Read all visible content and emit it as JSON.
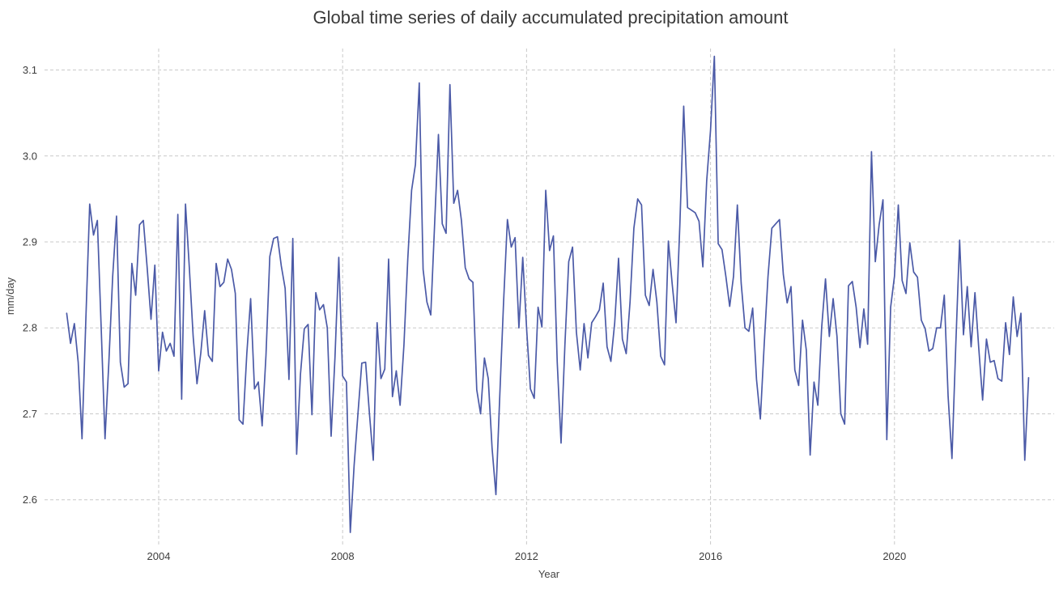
{
  "chart_data": {
    "type": "line",
    "title": "Global time series of daily accumulated precipitation amount",
    "xlabel": "Year",
    "ylabel": "mm/day",
    "x_ticks": [
      "2004",
      "2008",
      "2012",
      "2016",
      "2020"
    ],
    "x_tick_values": [
      2004,
      2008,
      2012,
      2016,
      2020
    ],
    "y_ticks": [
      "2.6",
      "2.7",
      "2.8",
      "2.9",
      "3.0",
      "3.1"
    ],
    "y_tick_values": [
      2.6,
      2.7,
      2.8,
      2.9,
      3.0,
      3.1
    ],
    "xlim": [
      2001.518,
      2023.472
    ],
    "ylim": [
      2.547,
      3.125
    ],
    "grid": true,
    "grid_style": "dashed",
    "legend": "none",
    "colors": {
      "line": "#4b5aa7",
      "grid": "#c9c9c9",
      "title_text": "#3a3a3a",
      "tick_text": "#3d3d3d",
      "background": "#ffffff"
    },
    "series": [
      {
        "name": "daily accumulated precipitation",
        "frequency": "monthly",
        "start_year": 2002,
        "start_month": 1,
        "values": [
          2.817,
          2.782,
          2.805,
          2.76,
          2.671,
          2.81,
          2.944,
          2.908,
          2.925,
          2.8,
          2.671,
          2.76,
          2.86,
          2.93,
          2.76,
          2.731,
          2.735,
          2.875,
          2.838,
          2.92,
          2.925,
          2.87,
          2.81,
          2.873,
          2.75,
          2.795,
          2.773,
          2.782,
          2.767,
          2.932,
          2.717,
          2.944,
          2.87,
          2.79,
          2.735,
          2.771,
          2.82,
          2.768,
          2.761,
          2.875,
          2.848,
          2.853,
          2.88,
          2.868,
          2.84,
          2.693,
          2.688,
          2.77,
          2.834,
          2.729,
          2.737,
          2.686,
          2.768,
          2.883,
          2.904,
          2.906,
          2.872,
          2.846,
          2.74,
          2.904,
          2.653,
          2.746,
          2.799,
          2.804,
          2.699,
          2.841,
          2.821,
          2.827,
          2.8,
          2.674,
          2.765,
          2.882,
          2.744,
          2.737,
          2.562,
          2.64,
          2.7,
          2.759,
          2.76,
          2.7,
          2.646,
          2.806,
          2.741,
          2.752,
          2.88,
          2.72,
          2.75,
          2.71,
          2.78,
          2.88,
          2.96,
          2.99,
          3.085,
          2.868,
          2.83,
          2.815,
          2.92,
          3.025,
          2.921,
          2.91,
          3.083,
          2.945,
          2.96,
          2.925,
          2.87,
          2.857,
          2.853,
          2.728,
          2.7,
          2.765,
          2.741,
          2.66,
          2.606,
          2.72,
          2.83,
          2.926,
          2.894,
          2.905,
          2.8,
          2.882,
          2.8,
          2.729,
          2.718,
          2.824,
          2.801,
          2.96,
          2.89,
          2.907,
          2.76,
          2.666,
          2.78,
          2.877,
          2.894,
          2.795,
          2.751,
          2.805,
          2.765,
          2.806,
          2.813,
          2.821,
          2.852,
          2.778,
          2.761,
          2.806,
          2.881,
          2.787,
          2.77,
          2.83,
          2.916,
          2.95,
          2.943,
          2.838,
          2.826,
          2.868,
          2.83,
          2.767,
          2.757,
          2.901,
          2.851,
          2.806,
          2.92,
          3.058,
          2.94,
          2.937,
          2.934,
          2.924,
          2.871,
          2.971,
          3.03,
          3.116,
          2.898,
          2.891,
          2.86,
          2.825,
          2.86,
          2.943,
          2.852,
          2.8,
          2.796,
          2.823,
          2.74,
          2.694,
          2.78,
          2.86,
          2.916,
          2.921,
          2.926,
          2.862,
          2.829,
          2.848,
          2.751,
          2.733,
          2.809,
          2.774,
          2.652,
          2.737,
          2.71,
          2.8,
          2.857,
          2.79,
          2.834,
          2.79,
          2.7,
          2.688,
          2.849,
          2.854,
          2.824,
          2.777,
          2.822,
          2.781,
          3.005,
          2.877,
          2.92,
          2.949,
          2.67,
          2.824,
          2.86,
          2.943,
          2.855,
          2.84,
          2.899,
          2.865,
          2.859,
          2.809,
          2.799,
          2.773,
          2.776,
          2.8,
          2.8,
          2.838,
          2.72,
          2.648,
          2.78,
          2.902,
          2.792,
          2.848,
          2.778,
          2.841,
          2.776,
          2.716,
          2.787,
          2.76,
          2.762,
          2.741,
          2.738,
          2.806,
          2.769,
          2.836,
          2.79,
          2.817,
          2.646,
          2.742
        ]
      }
    ]
  }
}
